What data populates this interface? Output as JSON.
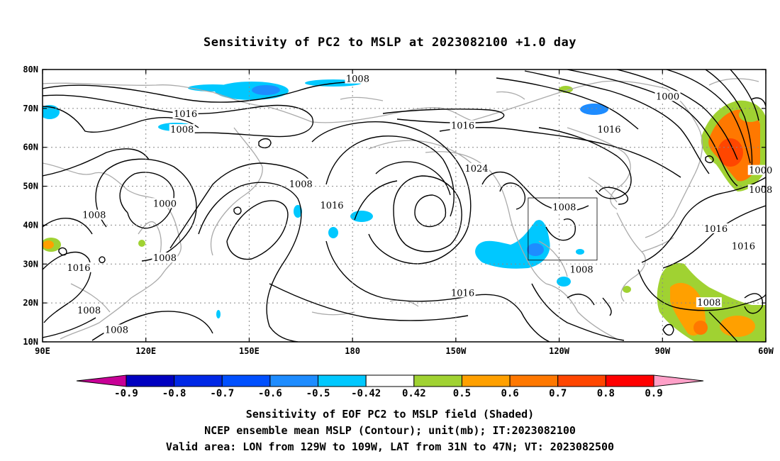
{
  "title": "Sensitivity of PC2 to MSLP at 2023082100 +1.0 day",
  "footer": [
    "Sensitivity of EOF PC2 to MSLP field (Shaded)",
    "NCEP ensemble mean MSLP (Contour); unit(mb); IT:2023082100",
    "Valid area: LON from 129W to 109W, LAT from 31N to 47N; VT: 2023082500"
  ],
  "map": {
    "lon_range": [
      90,
      300
    ],
    "lat_range": [
      10,
      80
    ],
    "lon_ticks": [
      {
        "lon": 90,
        "label": "90E"
      },
      {
        "lon": 120,
        "label": "120E"
      },
      {
        "lon": 150,
        "label": "150E"
      },
      {
        "lon": 180,
        "label": "180"
      },
      {
        "lon": 210,
        "label": "150W"
      },
      {
        "lon": 240,
        "label": "120W"
      },
      {
        "lon": 270,
        "label": "90W"
      },
      {
        "lon": 300,
        "label": "60W"
      }
    ],
    "lat_ticks": [
      {
        "lat": 10,
        "label": "10N"
      },
      {
        "lat": 20,
        "label": "20N"
      },
      {
        "lat": 30,
        "label": "30N"
      },
      {
        "lat": 40,
        "label": "40N"
      },
      {
        "lat": 50,
        "label": "50N"
      },
      {
        "lat": 60,
        "label": "60N"
      },
      {
        "lat": 70,
        "label": "70N"
      },
      {
        "lat": 80,
        "label": "80N"
      }
    ],
    "valid_box": {
      "lon": [
        231,
        251
      ],
      "lat": [
        31,
        47
      ]
    }
  },
  "contour_labels": [
    {
      "text": "1008",
      "lon": 181.5,
      "lat": 77.5
    },
    {
      "text": "1016",
      "lon": 131.5,
      "lat": 68.5
    },
    {
      "text": "1008",
      "lon": 130.5,
      "lat": 64.5
    },
    {
      "text": "1000",
      "lon": 271.5,
      "lat": 73.0
    },
    {
      "text": "1016",
      "lon": 212.0,
      "lat": 65.5
    },
    {
      "text": "1016",
      "lon": 254.5,
      "lat": 64.5
    },
    {
      "text": "1024",
      "lon": 216.0,
      "lat": 54.5
    },
    {
      "text": "1008",
      "lon": 165.0,
      "lat": 50.5
    },
    {
      "text": "1000",
      "lon": 125.5,
      "lat": 45.5
    },
    {
      "text": "1016",
      "lon": 174.0,
      "lat": 45.0
    },
    {
      "text": "1008",
      "lon": 105.0,
      "lat": 42.5
    },
    {
      "text": "1008",
      "lon": 241.5,
      "lat": 44.5
    },
    {
      "text": "1000",
      "lon": 298.5,
      "lat": 54.0
    },
    {
      "text": "1008",
      "lon": 298.5,
      "lat": 49.0
    },
    {
      "text": "1016",
      "lon": 285.5,
      "lat": 39.0
    },
    {
      "text": "1016",
      "lon": 293.5,
      "lat": 34.5
    },
    {
      "text": "1008",
      "lon": 125.5,
      "lat": 31.5
    },
    {
      "text": "1016",
      "lon": 100.5,
      "lat": 29.0
    },
    {
      "text": "1008",
      "lon": 246.5,
      "lat": 28.5
    },
    {
      "text": "1016",
      "lon": 212.0,
      "lat": 22.5
    },
    {
      "text": "1008",
      "lon": 283.5,
      "lat": 20.0
    },
    {
      "text": "1008",
      "lon": 103.5,
      "lat": 18.0
    },
    {
      "text": "1008",
      "lon": 111.5,
      "lat": 13.0
    }
  ],
  "colorbar": {
    "labels": [
      "-0.9",
      "-0.8",
      "-0.7",
      "-0.6",
      "-0.5",
      "-0.42",
      "0.42",
      "0.5",
      "0.6",
      "0.7",
      "0.8",
      "0.9"
    ],
    "colors": [
      "#0000c0",
      "#0028e6",
      "#0050ff",
      "#1e8cff",
      "#00c8ff",
      "#ffffff",
      "#a0d232",
      "#ffa000",
      "#ff7800",
      "#ff4600",
      "#ff0000"
    ],
    "low_end": "#c80096",
    "high_end": "#ffa0c8"
  }
}
